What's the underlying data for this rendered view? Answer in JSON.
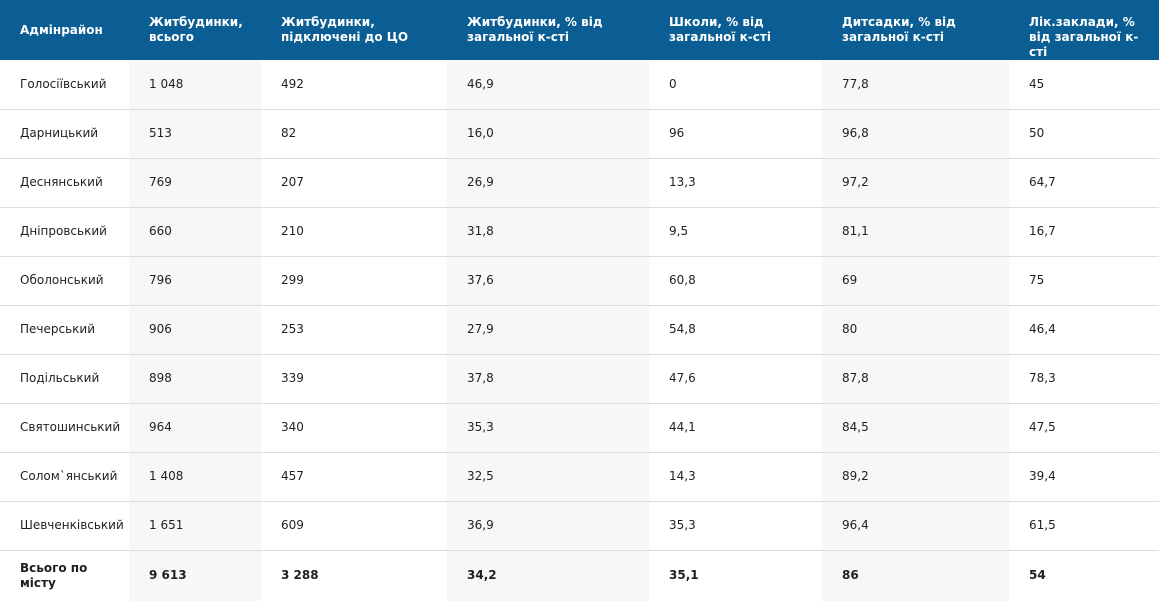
{
  "table": {
    "headers": [
      "Адмінрайон",
      "Житбудинки, всього",
      "Житбудинки, підключені до ЦО",
      "Житбудинки, % від загальної к-сті",
      "Школи, % від загальної к-сті",
      "Дитсадки, % від загальної к-сті",
      "Лік.заклади, % від загальної к-сті"
    ],
    "rows": [
      [
        "Голосіївський",
        "1 048",
        "492",
        "46,9",
        "0",
        "77,8",
        "45"
      ],
      [
        "Дарницький",
        "513",
        "82",
        "16,0",
        "96",
        "96,8",
        "50"
      ],
      [
        "Деснянський",
        "769",
        "207",
        "26,9",
        "13,3",
        "97,2",
        "64,7"
      ],
      [
        "Дніпровський",
        "660",
        "210",
        "31,8",
        "9,5",
        "81,1",
        "16,7"
      ],
      [
        "Оболонський",
        "796",
        "299",
        "37,6",
        "60,8",
        "69",
        "75"
      ],
      [
        "Печерський",
        "906",
        "253",
        "27,9",
        "54,8",
        "80",
        "46,4"
      ],
      [
        "Подільський",
        "898",
        "339",
        "37,8",
        "47,6",
        "87,8",
        "78,3"
      ],
      [
        "Святошинський",
        "964",
        "340",
        "35,3",
        "44,1",
        "84,5",
        "47,5"
      ],
      [
        "Солом`янський",
        "1 408",
        "457",
        "32,5",
        "14,3",
        "89,2",
        "39,4"
      ],
      [
        "Шевченківський",
        "1 651",
        "609",
        "36,9",
        "35,3",
        "96,4",
        "61,5"
      ]
    ],
    "total": [
      "Всього по місту",
      "9 613",
      "3 288",
      "34,2",
      "35,1",
      "86",
      "54"
    ]
  },
  "colors": {
    "header_bg": "#0b5e94",
    "header_text": "#ffffff",
    "alt_column_bg": "#f6f7f9",
    "row_border": "#dcdcdc"
  }
}
